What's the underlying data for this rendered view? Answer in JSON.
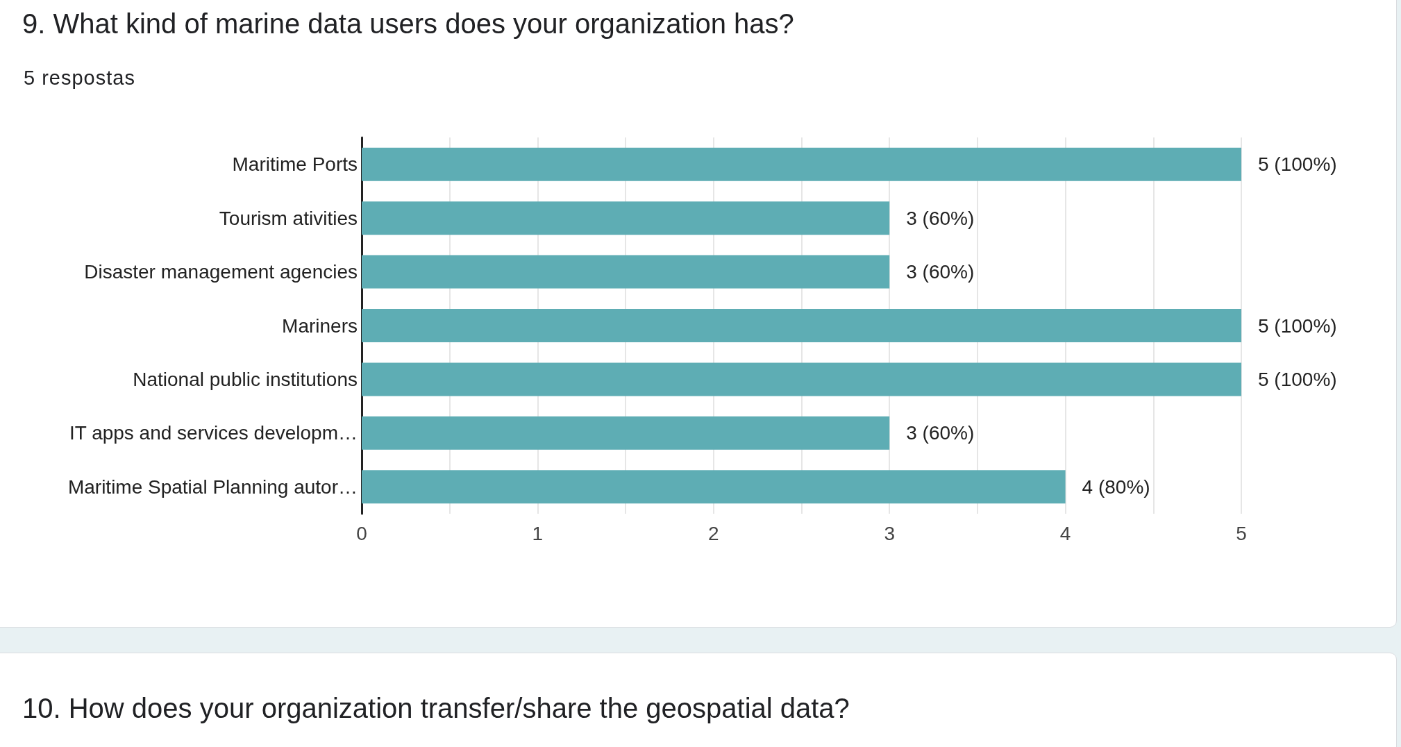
{
  "chart_data": {
    "type": "bar",
    "orientation": "horizontal",
    "title": "9. What kind of marine data users does your organization has?",
    "subtitle": "5 respostas",
    "categories": [
      "Maritime Ports",
      "Tourism ativities",
      "Disaster management agencies",
      "Mariners",
      "National public institutions",
      "IT apps and services developm…",
      "Maritime Spatial Planning autor…"
    ],
    "values": [
      5,
      3,
      3,
      5,
      5,
      3,
      4
    ],
    "value_labels": [
      "5 (100%)",
      "3 (60%)",
      "3 (60%)",
      "5 (100%)",
      "5 (100%)",
      "3 (60%)",
      "4 (80%)"
    ],
    "color": "#5eadb4",
    "xlim": [
      0,
      5
    ],
    "xticks": [
      0,
      {
        "value": 0.5,
        "label": null
      },
      1,
      {
        "value": 1.5,
        "label": null
      },
      2,
      {
        "value": 2.5,
        "label": null
      },
      3,
      {
        "value": 3.5,
        "label": null
      },
      4,
      {
        "value": 4.5,
        "label": null
      },
      5
    ],
    "grid": "x",
    "annotations": [
      "10. How does your organization transfer/share the geospatial data?"
    ]
  }
}
